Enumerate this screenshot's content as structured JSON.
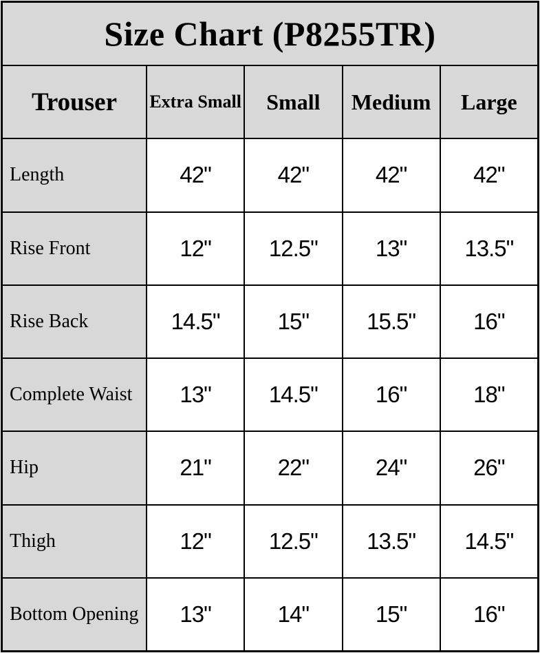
{
  "title": "Size Chart (P8255TR)",
  "colors": {
    "header_bg": "#d8d8d8",
    "cell_bg": "#ffffff",
    "border": "#000000",
    "text": "#000000"
  },
  "chart_data": {
    "type": "table",
    "title": "Size Chart (P8255TR)",
    "corner_label": "Trouser",
    "columns": [
      "Extra Small",
      "Small",
      "Medium",
      "Large"
    ],
    "rows": [
      {
        "label": "Length",
        "values": [
          "42\"",
          "42\"",
          "42\"",
          "42\""
        ]
      },
      {
        "label": "Rise Front",
        "values": [
          "12\"",
          "12.5\"",
          "13\"",
          "13.5\""
        ]
      },
      {
        "label": "Rise Back",
        "values": [
          "14.5\"",
          "15\"",
          "15.5\"",
          "16\""
        ]
      },
      {
        "label": "Complete Waist",
        "values": [
          "13\"",
          "14.5\"",
          "16\"",
          "18\""
        ]
      },
      {
        "label": "Hip",
        "values": [
          "21\"",
          "22\"",
          "24\"",
          "26\""
        ]
      },
      {
        "label": "Thigh",
        "values": [
          "12\"",
          "12.5\"",
          "13.5\"",
          "14.5\""
        ]
      },
      {
        "label": "Bottom Opening",
        "values": [
          "13\"",
          "14\"",
          "15\"",
          "16\""
        ]
      }
    ],
    "units": "inches",
    "layout": {
      "grid": true,
      "header_row": true,
      "header_column": true
    }
  }
}
